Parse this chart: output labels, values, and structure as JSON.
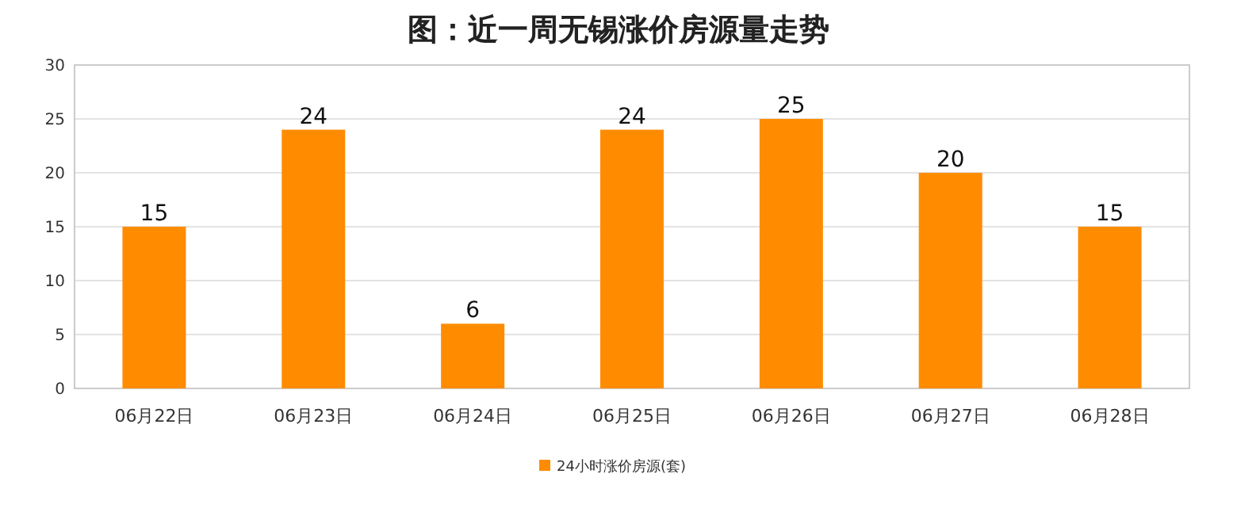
{
  "chart_data": {
    "type": "bar",
    "title": "图：近一周无锡涨价房源量走势",
    "categories": [
      "06月22日",
      "06月23日",
      "06月24日",
      "06月25日",
      "06月26日",
      "06月27日",
      "06月28日"
    ],
    "series": [
      {
        "name": "24小时涨价房源(套)",
        "color": "#ff8c00",
        "values": [
          15,
          24,
          6,
          24,
          25,
          20,
          15
        ]
      }
    ],
    "ylim": [
      0,
      30
    ],
    "yticks": [
      0,
      5,
      10,
      15,
      20,
      25,
      30
    ],
    "grid": "y",
    "legend": "bottom",
    "data_labels": true
  }
}
